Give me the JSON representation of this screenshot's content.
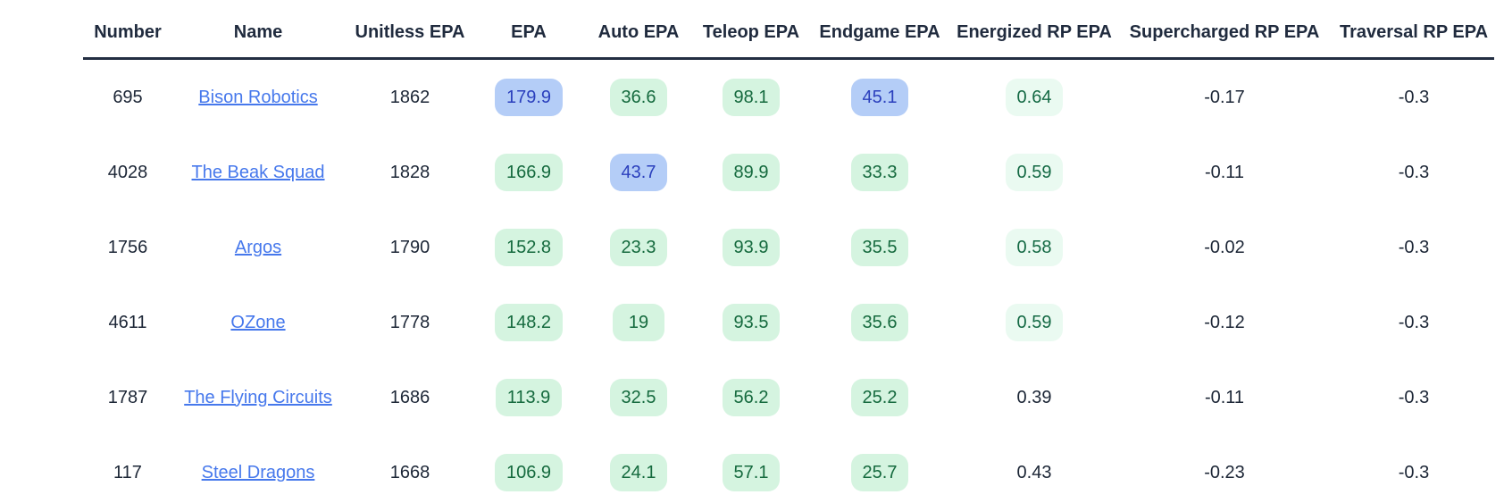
{
  "table": {
    "columns": [
      "Number",
      "Name",
      "Unitless EPA",
      "EPA",
      "Auto EPA",
      "Teleop EPA",
      "Endgame EPA",
      "Energized RP EPA",
      "Supercharged RP EPA",
      "Traversal RP EPA"
    ],
    "metric_keys": [
      "epa",
      "auto_epa",
      "teleop_epa",
      "endgame_epa",
      "energized_rp_epa",
      "supercharged_rp_epa",
      "traversal_rp_epa"
    ],
    "rows": [
      {
        "number": "695",
        "name": "Bison Robotics",
        "unitless_epa": "1862",
        "epa": {
          "value": "179.9",
          "highlight": "blue"
        },
        "auto_epa": {
          "value": "36.6",
          "highlight": "green"
        },
        "teleop_epa": {
          "value": "98.1",
          "highlight": "green"
        },
        "endgame_epa": {
          "value": "45.1",
          "highlight": "blue"
        },
        "energized_rp_epa": {
          "value": "0.64",
          "highlight": "pale-green"
        },
        "supercharged_rp_epa": {
          "value": "-0.17",
          "highlight": "none"
        },
        "traversal_rp_epa": {
          "value": "-0.3",
          "highlight": "none"
        }
      },
      {
        "number": "4028",
        "name": "The Beak Squad",
        "unitless_epa": "1828",
        "epa": {
          "value": "166.9",
          "highlight": "green"
        },
        "auto_epa": {
          "value": "43.7",
          "highlight": "blue"
        },
        "teleop_epa": {
          "value": "89.9",
          "highlight": "green"
        },
        "endgame_epa": {
          "value": "33.3",
          "highlight": "green"
        },
        "energized_rp_epa": {
          "value": "0.59",
          "highlight": "pale-green"
        },
        "supercharged_rp_epa": {
          "value": "-0.11",
          "highlight": "none"
        },
        "traversal_rp_epa": {
          "value": "-0.3",
          "highlight": "none"
        }
      },
      {
        "number": "1756",
        "name": "Argos",
        "unitless_epa": "1790",
        "epa": {
          "value": "152.8",
          "highlight": "green"
        },
        "auto_epa": {
          "value": "23.3",
          "highlight": "green"
        },
        "teleop_epa": {
          "value": "93.9",
          "highlight": "green"
        },
        "endgame_epa": {
          "value": "35.5",
          "highlight": "green"
        },
        "energized_rp_epa": {
          "value": "0.58",
          "highlight": "pale-green"
        },
        "supercharged_rp_epa": {
          "value": "-0.02",
          "highlight": "none"
        },
        "traversal_rp_epa": {
          "value": "-0.3",
          "highlight": "none"
        }
      },
      {
        "number": "4611",
        "name": "OZone",
        "unitless_epa": "1778",
        "epa": {
          "value": "148.2",
          "highlight": "green"
        },
        "auto_epa": {
          "value": "19",
          "highlight": "green"
        },
        "teleop_epa": {
          "value": "93.5",
          "highlight": "green"
        },
        "endgame_epa": {
          "value": "35.6",
          "highlight": "green"
        },
        "energized_rp_epa": {
          "value": "0.59",
          "highlight": "pale-green"
        },
        "supercharged_rp_epa": {
          "value": "-0.12",
          "highlight": "none"
        },
        "traversal_rp_epa": {
          "value": "-0.3",
          "highlight": "none"
        }
      },
      {
        "number": "1787",
        "name": "The Flying Circuits",
        "unitless_epa": "1686",
        "epa": {
          "value": "113.9",
          "highlight": "green"
        },
        "auto_epa": {
          "value": "32.5",
          "highlight": "green"
        },
        "teleop_epa": {
          "value": "56.2",
          "highlight": "green"
        },
        "endgame_epa": {
          "value": "25.2",
          "highlight": "green"
        },
        "energized_rp_epa": {
          "value": "0.39",
          "highlight": "none"
        },
        "supercharged_rp_epa": {
          "value": "-0.11",
          "highlight": "none"
        },
        "traversal_rp_epa": {
          "value": "-0.3",
          "highlight": "none"
        }
      },
      {
        "number": "117",
        "name": "Steel Dragons",
        "unitless_epa": "1668",
        "epa": {
          "value": "106.9",
          "highlight": "green"
        },
        "auto_epa": {
          "value": "24.1",
          "highlight": "green"
        },
        "teleop_epa": {
          "value": "57.1",
          "highlight": "green"
        },
        "endgame_epa": {
          "value": "25.7",
          "highlight": "green"
        },
        "energized_rp_epa": {
          "value": "0.43",
          "highlight": "none"
        },
        "supercharged_rp_epa": {
          "value": "-0.23",
          "highlight": "none"
        },
        "traversal_rp_epa": {
          "value": "-0.3",
          "highlight": "none"
        }
      }
    ]
  },
  "colors": {
    "header_text": "#202b3e",
    "header_underline": "#232e42",
    "body_text": "#1c2636",
    "link_blue": "#4678ec",
    "pill_green_bg": "#d5f4e0",
    "pill_green_text": "#156a3e",
    "pill_blue_bg": "#b4cdf7",
    "pill_blue_text": "#2b40bd",
    "pill_pale_green_bg": "#eafaf1",
    "pill_pale_green_text": "#156a45"
  }
}
